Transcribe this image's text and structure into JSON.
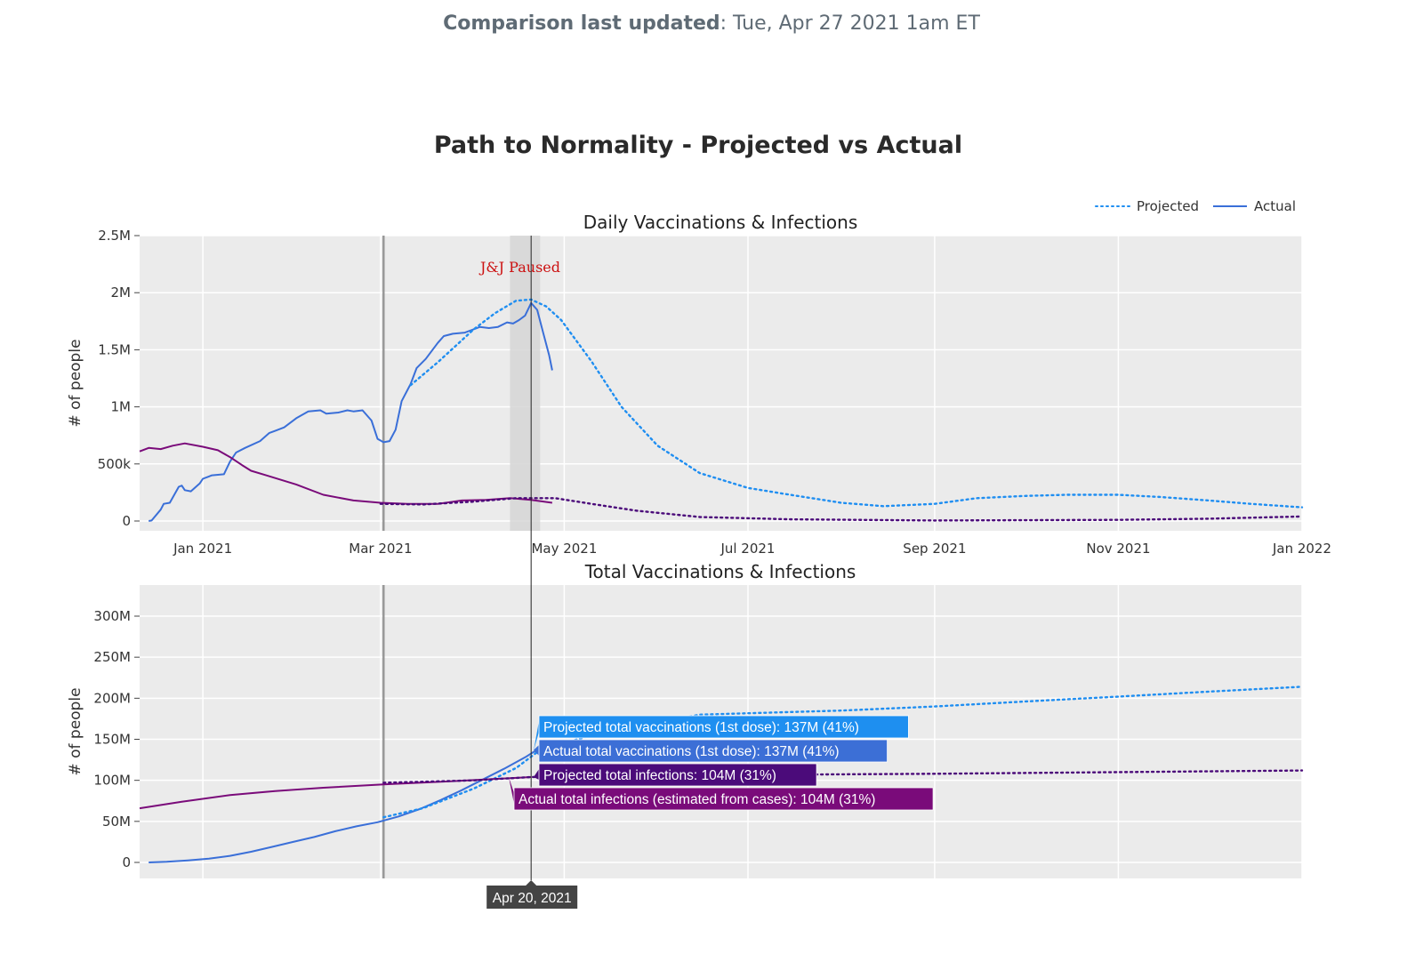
{
  "header": {
    "updated_label": "Comparison last updated",
    "updated_value": ": Tue, Apr 27 2021 1am ET"
  },
  "colors": {
    "vax_projected": "#1f8ef1",
    "vax_actual": "#3a6fd8",
    "inf_projected": "#4b0b7a",
    "inf_actual": "#7a0b7a",
    "plot_bg": "#ebebeb"
  },
  "chart_data": {
    "title": "Path to Normality - Projected vs Actual",
    "legend": {
      "position": "top-right",
      "entries": [
        {
          "label": "Projected",
          "style": "dotted"
        },
        {
          "label": "Actual",
          "style": "solid"
        }
      ]
    },
    "x_ticks": [
      "Jan 2021",
      "Mar 2021",
      "May 2021",
      "Jul 2021",
      "Sep 2021",
      "Nov 2021",
      "Jan 2022"
    ],
    "xlim": [
      "2020-12-11",
      "2022-01-01"
    ],
    "markers": [
      {
        "type": "vline",
        "date": "2021-03-02"
      },
      {
        "type": "band",
        "start": "2021-04-13",
        "end": "2021-04-23",
        "label": "J&J Paused"
      },
      {
        "type": "hover-line",
        "date": "2021-04-20",
        "label": "Apr 20, 2021"
      }
    ],
    "panels": [
      {
        "type": "line",
        "title": "Daily Vaccinations & Infections",
        "ylabel": "# of people",
        "ylim": [
          0,
          2500000
        ],
        "yticks": [
          0,
          500000,
          1000000,
          1500000,
          2000000,
          2500000
        ],
        "ytick_labels": [
          "0",
          "500k",
          "1M",
          "1.5M",
          "2M",
          "2.5M"
        ],
        "series": [
          {
            "kind": "vax_actual",
            "dash": "solid",
            "points": [
              [
                "2020-12-14",
                0
              ],
              [
                "2020-12-15",
                5000
              ],
              [
                "2020-12-18",
                100000
              ],
              [
                "2020-12-19",
                150000
              ],
              [
                "2020-12-21",
                160000
              ],
              [
                "2020-12-24",
                300000
              ],
              [
                "2020-12-25",
                310000
              ],
              [
                "2020-12-26",
                270000
              ],
              [
                "2020-12-28",
                260000
              ],
              [
                "2020-12-31",
                330000
              ],
              [
                "2021-01-01",
                370000
              ],
              [
                "2021-01-03",
                390000
              ],
              [
                "2021-01-04",
                400000
              ],
              [
                "2021-01-08",
                410000
              ],
              [
                "2021-01-10",
                520000
              ],
              [
                "2021-01-12",
                600000
              ],
              [
                "2021-01-15",
                640000
              ],
              [
                "2021-01-20",
                700000
              ],
              [
                "2021-01-23",
                770000
              ],
              [
                "2021-01-25",
                790000
              ],
              [
                "2021-01-28",
                820000
              ],
              [
                "2021-02-01",
                900000
              ],
              [
                "2021-02-05",
                960000
              ],
              [
                "2021-02-09",
                970000
              ],
              [
                "2021-02-11",
                940000
              ],
              [
                "2021-02-15",
                950000
              ],
              [
                "2021-02-18",
                970000
              ],
              [
                "2021-02-20",
                960000
              ],
              [
                "2021-02-23",
                970000
              ],
              [
                "2021-02-26",
                880000
              ],
              [
                "2021-02-28",
                720000
              ],
              [
                "2021-03-02",
                690000
              ],
              [
                "2021-03-04",
                700000
              ],
              [
                "2021-03-06",
                800000
              ],
              [
                "2021-03-08",
                1050000
              ],
              [
                "2021-03-11",
                1200000
              ],
              [
                "2021-03-13",
                1340000
              ],
              [
                "2021-03-16",
                1420000
              ],
              [
                "2021-03-20",
                1560000
              ],
              [
                "2021-03-22",
                1620000
              ],
              [
                "2021-03-25",
                1640000
              ],
              [
                "2021-03-29",
                1650000
              ],
              [
                "2021-04-01",
                1680000
              ],
              [
                "2021-04-03",
                1700000
              ],
              [
                "2021-04-06",
                1690000
              ],
              [
                "2021-04-09",
                1700000
              ],
              [
                "2021-04-12",
                1740000
              ],
              [
                "2021-04-14",
                1730000
              ],
              [
                "2021-04-16",
                1760000
              ],
              [
                "2021-04-18",
                1800000
              ],
              [
                "2021-04-20",
                1910000
              ],
              [
                "2021-04-22",
                1850000
              ],
              [
                "2021-04-24",
                1650000
              ],
              [
                "2021-04-26",
                1450000
              ],
              [
                "2021-04-27",
                1320000
              ]
            ]
          },
          {
            "kind": "vax_projected",
            "dash": "dotted",
            "points": [
              [
                "2021-03-11",
                1190000
              ],
              [
                "2021-03-20",
                1390000
              ],
              [
                "2021-04-01",
                1680000
              ],
              [
                "2021-04-08",
                1820000
              ],
              [
                "2021-04-15",
                1930000
              ],
              [
                "2021-04-20",
                1940000
              ],
              [
                "2021-04-25",
                1880000
              ],
              [
                "2021-04-30",
                1760000
              ],
              [
                "2021-05-10",
                1400000
              ],
              [
                "2021-05-20",
                1000000
              ],
              [
                "2021-06-01",
                660000
              ],
              [
                "2021-06-15",
                420000
              ],
              [
                "2021-07-01",
                290000
              ],
              [
                "2021-07-15",
                230000
              ],
              [
                "2021-08-01",
                160000
              ],
              [
                "2021-08-15",
                130000
              ],
              [
                "2021-09-01",
                150000
              ],
              [
                "2021-09-15",
                200000
              ],
              [
                "2021-10-01",
                220000
              ],
              [
                "2021-10-15",
                230000
              ],
              [
                "2021-11-01",
                230000
              ],
              [
                "2021-11-15",
                210000
              ],
              [
                "2021-12-01",
                180000
              ],
              [
                "2021-12-15",
                150000
              ],
              [
                "2022-01-01",
                120000
              ]
            ]
          },
          {
            "kind": "inf_actual",
            "dash": "solid",
            "points": [
              [
                "2020-12-11",
                610000
              ],
              [
                "2020-12-14",
                640000
              ],
              [
                "2020-12-18",
                630000
              ],
              [
                "2020-12-22",
                660000
              ],
              [
                "2020-12-26",
                680000
              ],
              [
                "2021-01-01",
                650000
              ],
              [
                "2021-01-06",
                620000
              ],
              [
                "2021-01-10",
                560000
              ],
              [
                "2021-01-14",
                490000
              ],
              [
                "2021-01-17",
                440000
              ],
              [
                "2021-01-22",
                400000
              ],
              [
                "2021-02-01",
                320000
              ],
              [
                "2021-02-10",
                230000
              ],
              [
                "2021-02-20",
                180000
              ],
              [
                "2021-03-01",
                160000
              ],
              [
                "2021-03-10",
                150000
              ],
              [
                "2021-03-20",
                150000
              ],
              [
                "2021-03-28",
                180000
              ],
              [
                "2021-04-05",
                185000
              ],
              [
                "2021-04-13",
                200000
              ],
              [
                "2021-04-20",
                185000
              ],
              [
                "2021-04-27",
                160000
              ]
            ]
          },
          {
            "kind": "inf_projected",
            "dash": "dotted",
            "points": [
              [
                "2021-03-01",
                150000
              ],
              [
                "2021-03-15",
                145000
              ],
              [
                "2021-04-01",
                170000
              ],
              [
                "2021-04-15",
                200000
              ],
              [
                "2021-04-28",
                200000
              ],
              [
                "2021-05-10",
                150000
              ],
              [
                "2021-05-25",
                90000
              ],
              [
                "2021-06-15",
                35000
              ],
              [
                "2021-07-15",
                15000
              ],
              [
                "2021-09-01",
                5000
              ],
              [
                "2021-11-01",
                10000
              ],
              [
                "2021-12-01",
                20000
              ],
              [
                "2022-01-01",
                40000
              ]
            ]
          }
        ]
      },
      {
        "type": "line",
        "title": "Total Vaccinations & Infections",
        "ylabel": "# of people",
        "ylim": [
          -20000000,
          340000000
        ],
        "yticks": [
          0,
          50000000,
          100000000,
          150000000,
          200000000,
          250000000,
          300000000
        ],
        "ytick_labels": [
          "0",
          "50M",
          "100M",
          "150M",
          "200M",
          "250M",
          "300M"
        ],
        "series": [
          {
            "kind": "vax_actual",
            "dash": "solid",
            "points": [
              [
                "2020-12-14",
                0
              ],
              [
                "2020-12-20",
                800000
              ],
              [
                "2020-12-27",
                2500000
              ],
              [
                "2021-01-03",
                4500000
              ],
              [
                "2021-01-10",
                8000000
              ],
              [
                "2021-01-17",
                13000000
              ],
              [
                "2021-01-24",
                19000000
              ],
              [
                "2021-01-31",
                25000000
              ],
              [
                "2021-02-07",
                31000000
              ],
              [
                "2021-02-14",
                38000000
              ],
              [
                "2021-02-21",
                44000000
              ],
              [
                "2021-02-28",
                49000000
              ],
              [
                "2021-03-07",
                56000000
              ],
              [
                "2021-03-14",
                65000000
              ],
              [
                "2021-03-21",
                76000000
              ],
              [
                "2021-03-28",
                88000000
              ],
              [
                "2021-04-04",
                101000000
              ],
              [
                "2021-04-11",
                114000000
              ],
              [
                "2021-04-18",
                128000000
              ],
              [
                "2021-04-21",
                135000000
              ],
              [
                "2021-04-23",
                137000000
              ]
            ]
          },
          {
            "kind": "vax_projected",
            "dash": "dotted",
            "points": [
              [
                "2021-03-02",
                55000000
              ],
              [
                "2021-03-15",
                66000000
              ],
              [
                "2021-04-01",
                90000000
              ],
              [
                "2021-04-15",
                115000000
              ],
              [
                "2021-04-23",
                137000000
              ],
              [
                "2021-05-15",
                160000000
              ],
              [
                "2021-06-15",
                180000000
              ],
              [
                "2021-08-01",
                185000000
              ],
              [
                "2021-09-01",
                190000000
              ],
              [
                "2021-10-01",
                196000000
              ],
              [
                "2021-11-01",
                202000000
              ],
              [
                "2021-12-01",
                208000000
              ],
              [
                "2022-01-01",
                214000000
              ]
            ]
          },
          {
            "kind": "inf_actual",
            "dash": "solid",
            "points": [
              [
                "2020-12-11",
                66000000
              ],
              [
                "2020-12-25",
                74000000
              ],
              [
                "2021-01-10",
                82000000
              ],
              [
                "2021-01-25",
                87000000
              ],
              [
                "2021-02-10",
                91000000
              ],
              [
                "2021-03-02",
                95000000
              ],
              [
                "2021-03-25",
                99000000
              ],
              [
                "2021-04-20",
                104000000
              ]
            ]
          },
          {
            "kind": "inf_projected",
            "dash": "dotted",
            "points": [
              [
                "2021-03-02",
                97000000
              ],
              [
                "2021-04-01",
                100000000
              ],
              [
                "2021-04-20",
                104000000
              ],
              [
                "2021-06-01",
                106000000
              ],
              [
                "2021-09-01",
                108000000
              ],
              [
                "2022-01-01",
                112000000
              ]
            ]
          }
        ]
      }
    ],
    "hover": {
      "date_label": "Apr 20, 2021",
      "labels": [
        {
          "kind": "vax_projected",
          "text": "Projected total vaccinations (1st dose): 137M (41%)"
        },
        {
          "kind": "vax_actual",
          "text": "Actual total vaccinations (1st dose): 137M (41%)"
        },
        {
          "kind": "inf_projected",
          "text": "Projected total infections: 104M (31%)"
        },
        {
          "kind": "inf_actual",
          "text": "Actual total infections (estimated from cases): 104M (31%)"
        }
      ]
    }
  }
}
